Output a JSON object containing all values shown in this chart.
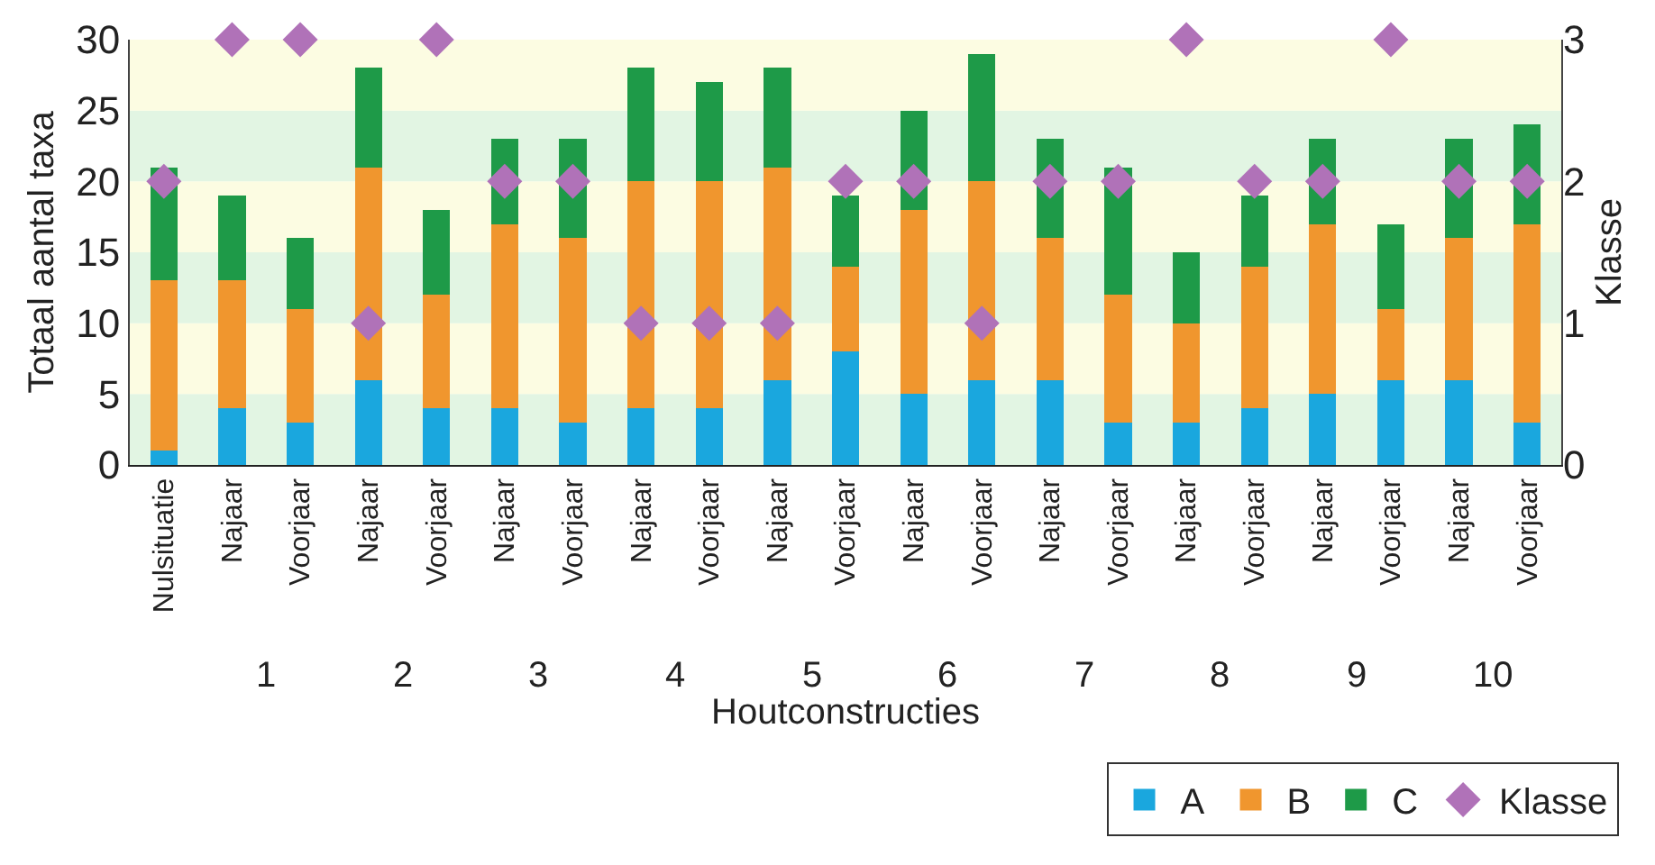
{
  "chart_data": {
    "type": "bar",
    "stacked": true,
    "xlabel": "Houtconstructies",
    "ylabel": "Totaal aantal taxa",
    "y2label": "Klasse",
    "categories": [
      "Nulsituatie",
      "Najaar",
      "Voorjaar",
      "Najaar",
      "Voorjaar",
      "Najaar",
      "Voorjaar",
      "Najaar",
      "Voorjaar",
      "Najaar",
      "Voorjaar",
      "Najaar",
      "Voorjaar",
      "Najaar",
      "Voorjaar",
      "Najaar",
      "Voorjaar",
      "Najaar",
      "Voorjaar",
      "Najaar",
      "Voorjaar"
    ],
    "series": [
      {
        "name": "A",
        "color": "#1aa7de",
        "values": [
          1,
          4,
          3,
          6,
          4,
          4,
          3,
          4,
          4,
          6,
          8,
          5,
          6,
          6,
          3,
          3,
          4,
          5,
          6,
          6,
          3
        ]
      },
      {
        "name": "B",
        "color": "#f0962e",
        "values": [
          12,
          9,
          8,
          15,
          8,
          13,
          13,
          16,
          16,
          15,
          6,
          13,
          14,
          10,
          9,
          7,
          10,
          12,
          5,
          10,
          14
        ]
      },
      {
        "name": "C",
        "color": "#1e9a48",
        "values": [
          8,
          6,
          5,
          7,
          6,
          6,
          7,
          8,
          7,
          7,
          5,
          7,
          9,
          7,
          9,
          5,
          5,
          6,
          6,
          7,
          7
        ]
      },
      {
        "name": "Klasse",
        "type": "scatter",
        "axis": "y2",
        "marker": "diamond",
        "color": "#b072b8",
        "values": [
          2,
          3,
          3,
          1,
          3,
          2,
          2,
          1,
          1,
          1,
          2,
          2,
          1,
          2,
          2,
          3,
          2,
          2,
          3,
          2,
          2
        ]
      }
    ],
    "ylim": [
      0,
      30
    ],
    "yticks": [
      0,
      5,
      10,
      15,
      20,
      25,
      30
    ],
    "y2lim": [
      0,
      3
    ],
    "y2ticks": [
      0,
      1,
      2,
      3
    ],
    "bands": [
      {
        "axis": "y",
        "from": 0,
        "to": 5,
        "color": "#e2f5e3"
      },
      {
        "axis": "y",
        "from": 5,
        "to": 10,
        "color": "#fcfce2"
      },
      {
        "axis": "y",
        "from": 10,
        "to": 15,
        "color": "#e2f5e3"
      },
      {
        "axis": "y",
        "from": 15,
        "to": 20,
        "color": "#fcfce2"
      },
      {
        "axis": "y",
        "from": 20,
        "to": 25,
        "color": "#e2f5e3"
      },
      {
        "axis": "y",
        "from": 25,
        "to": 30,
        "color": "#fcfce2"
      }
    ],
    "annotations": [
      "1",
      "2",
      "3",
      "4",
      "5",
      "6",
      "7",
      "8",
      "9",
      "10"
    ],
    "legend": "bottom right",
    "grid": false
  }
}
